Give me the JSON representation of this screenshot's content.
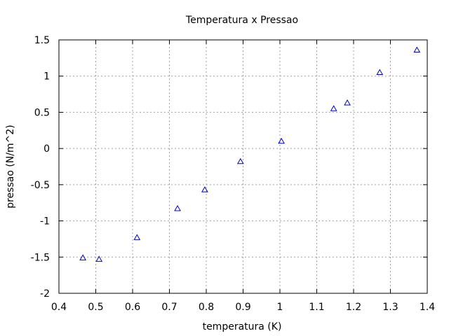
{
  "chart_data": {
    "type": "scatter",
    "title": "Temperatura x Pressao",
    "xlabel": "temperatura (K)",
    "ylabel": "pressao (N/m^2)",
    "xlim": [
      0.4,
      1.4
    ],
    "ylim": [
      -2,
      1.5
    ],
    "xticks": [
      0.4,
      0.5,
      0.6,
      0.7,
      0.8,
      0.9,
      1.0,
      1.1,
      1.2,
      1.3,
      1.4
    ],
    "yticks": [
      -2,
      -1.5,
      -1,
      -0.5,
      0,
      0.5,
      1,
      1.5
    ],
    "xtick_labels": [
      "0.4",
      "0.5",
      "0.6",
      "0.7",
      "0.8",
      "0.9",
      "1",
      "1.1",
      "1.2",
      "1.3",
      "1.4"
    ],
    "ytick_labels": [
      "-2",
      "-1.5",
      "-1",
      "-0.5",
      "0",
      "0.5",
      "1",
      "1.5"
    ],
    "grid": true,
    "marker": "triangle",
    "color": "#0000cc",
    "series": [
      {
        "points": [
          {
            "x": 0.465,
            "y": -1.51
          },
          {
            "x": 0.509,
            "y": -1.53
          },
          {
            "x": 0.612,
            "y": -1.23
          },
          {
            "x": 0.722,
            "y": -0.83
          },
          {
            "x": 0.796,
            "y": -0.57
          },
          {
            "x": 0.893,
            "y": -0.18
          },
          {
            "x": 1.004,
            "y": 0.1
          },
          {
            "x": 1.146,
            "y": 0.55
          },
          {
            "x": 1.183,
            "y": 0.63
          },
          {
            "x": 1.271,
            "y": 1.05
          },
          {
            "x": 1.372,
            "y": 1.36
          }
        ]
      }
    ]
  }
}
